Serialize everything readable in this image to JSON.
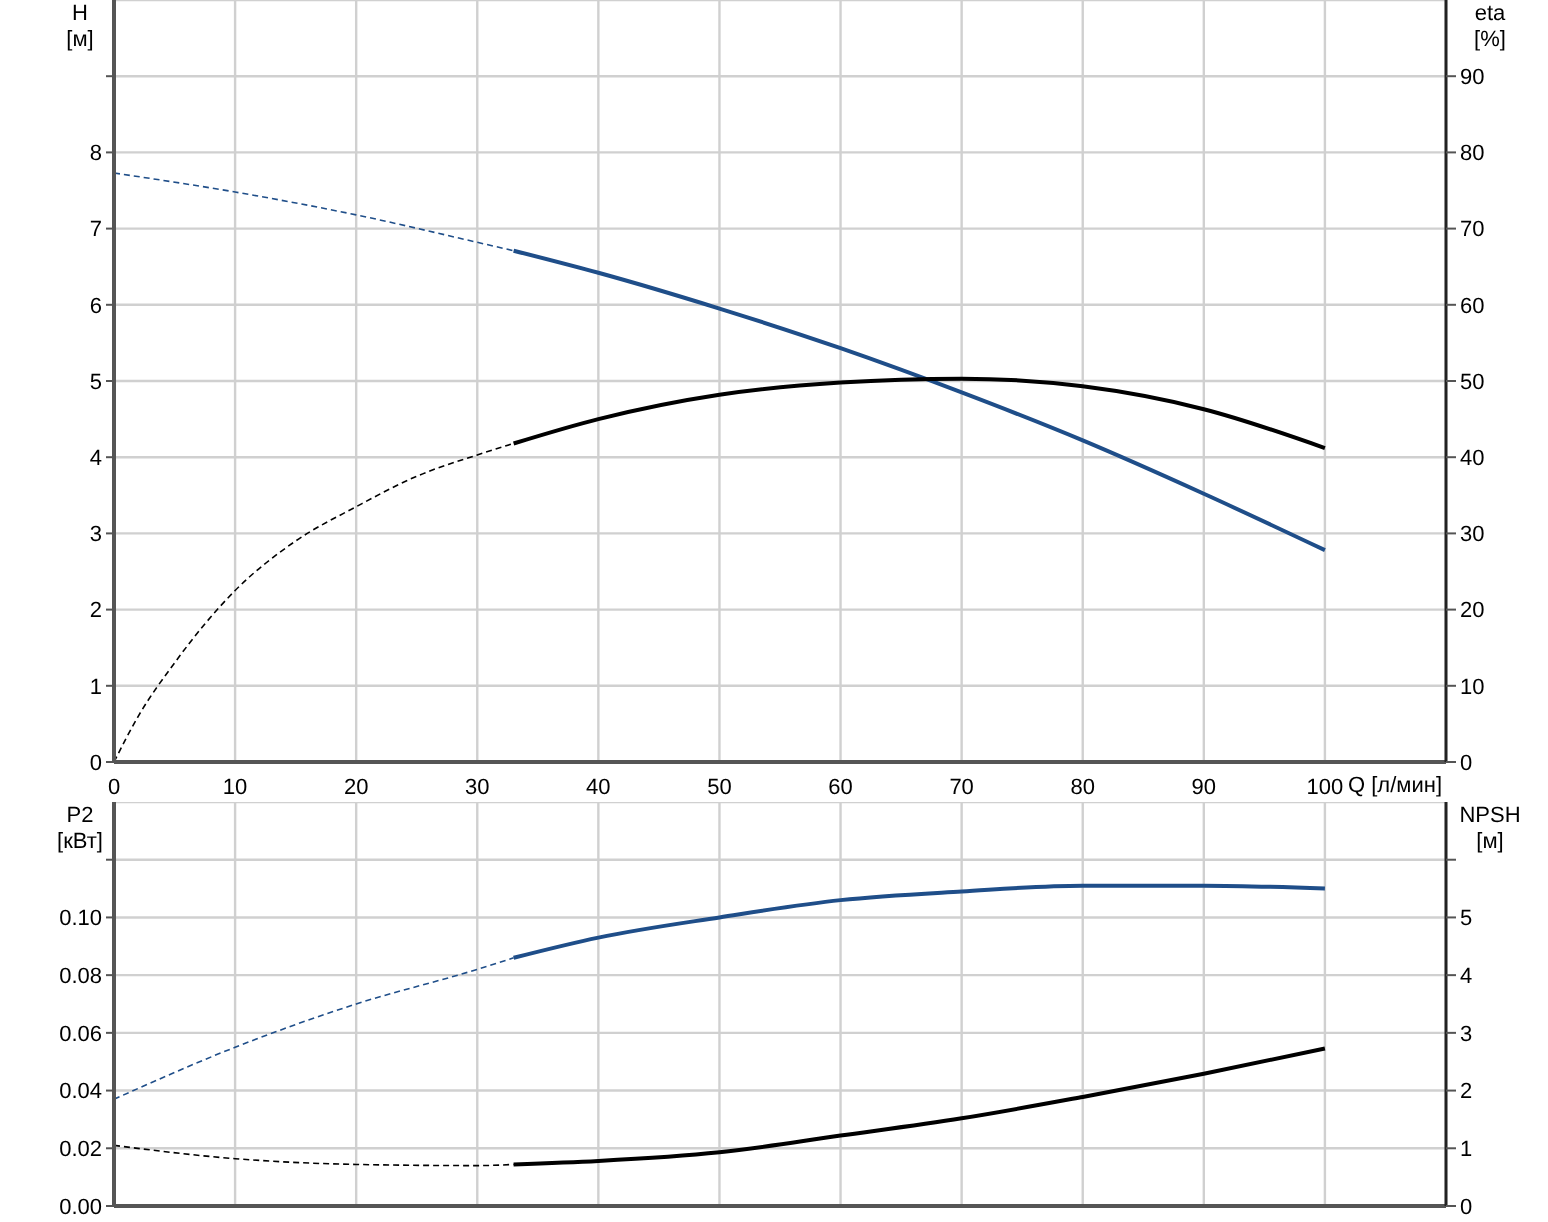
{
  "chart_data": [
    {
      "type": "line",
      "xlabel": "Q [л/мин]",
      "ylabel": "H [м]",
      "y2label": "eta [%]",
      "xlim": [
        0,
        110
      ],
      "xticks": [
        0,
        10,
        20,
        30,
        40,
        50,
        60,
        70,
        80,
        90,
        100
      ],
      "ylim": [
        0,
        10
      ],
      "yticks": [
        0,
        1,
        2,
        3,
        4,
        5,
        6,
        7,
        8,
        {
          "value": 9,
          "label": null
        }
      ],
      "y2lim": [
        0,
        100
      ],
      "y2ticks": [
        0,
        10,
        20,
        30,
        40,
        50,
        60,
        70,
        80,
        90
      ],
      "grid": true,
      "marker": "none",
      "series": [
        {
          "color": "#1f4e89",
          "line_style": "dashed",
          "x": [
            0,
            10,
            20,
            30,
            33
          ],
          "values": [
            7.73,
            7.48,
            7.18,
            6.82,
            6.71
          ]
        },
        {
          "color": "#1f4e89",
          "line_style": "solid",
          "x": [
            33,
            40,
            50,
            60,
            70,
            80,
            90,
            100
          ],
          "values": [
            6.71,
            6.42,
            5.95,
            5.43,
            4.85,
            4.22,
            3.52,
            2.78
          ]
        },
        {
          "color": "#000000",
          "line_style": "dashed",
          "axis": "y2",
          "x": [
            0,
            2,
            5,
            10,
            15,
            20,
            25,
            30,
            33
          ],
          "values": [
            0,
            6,
            13,
            22.5,
            29,
            33.5,
            37.5,
            40.3,
            41.8
          ]
        },
        {
          "color": "#000000",
          "line_style": "solid",
          "axis": "y2",
          "x": [
            33,
            40,
            50,
            60,
            70,
            80,
            90,
            100
          ],
          "values": [
            41.8,
            45,
            48.2,
            49.8,
            50.3,
            49.3,
            46.3,
            41.2
          ]
        }
      ]
    },
    {
      "type": "line",
      "ylabel": "P2 [кВт]",
      "y2label": "NPSH [м]",
      "xlim": [
        0,
        110
      ],
      "xticks": [
        0,
        10,
        20,
        30,
        40,
        50,
        60,
        70,
        80,
        90,
        100
      ],
      "ylim": [
        0,
        0.14
      ],
      "yticks": [
        {
          "value": 0,
          "label": "0.00"
        },
        0.02,
        0.04,
        0.06,
        0.08,
        {
          "value": 0.1,
          "label": "0.10"
        },
        {
          "value": 0.12,
          "label": null
        }
      ],
      "y2lim": [
        0,
        7
      ],
      "y2ticks": [
        0,
        1,
        2,
        3,
        4,
        5,
        {
          "value": 6,
          "label": null
        }
      ],
      "grid": true,
      "marker": "none",
      "tick_labels": "y",
      "series": [
        {
          "color": "#1f4e89",
          "line_style": "dashed",
          "x": [
            0,
            10,
            20,
            30,
            33
          ],
          "values": [
            0.037,
            0.055,
            0.07,
            0.082,
            0.086
          ]
        },
        {
          "color": "#1f4e89",
          "line_style": "solid",
          "x": [
            33,
            40,
            50,
            60,
            70,
            80,
            90,
            100
          ],
          "values": [
            0.086,
            0.093,
            0.1,
            0.106,
            0.109,
            0.111,
            0.111,
            0.11
          ]
        },
        {
          "color": "#000000",
          "line_style": "dashed",
          "axis": "y2",
          "x": [
            0,
            10,
            20,
            30,
            33
          ],
          "values": [
            1.05,
            0.82,
            0.72,
            0.7,
            0.72
          ]
        },
        {
          "color": "#000000",
          "line_style": "solid",
          "axis": "y2",
          "x": [
            33,
            40,
            50,
            60,
            70,
            80,
            90,
            100
          ],
          "values": [
            0.72,
            0.78,
            0.93,
            1.22,
            1.52,
            1.89,
            2.29,
            2.73
          ]
        }
      ]
    }
  ]
}
